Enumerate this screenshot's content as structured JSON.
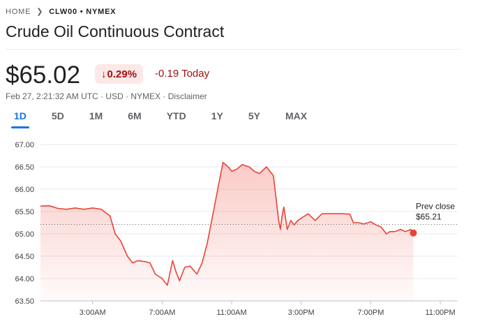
{
  "breadcrumb": {
    "home": "HOME",
    "item": "CLW00 • NYMEX"
  },
  "title": "Crude Oil Continuous Contract",
  "quote": {
    "price": "$65.02",
    "change_pct": "0.29%",
    "change_today": "-0.19 Today",
    "meta": "Feb 27, 2:21:32 AM UTC · USD · NYMEX · Disclaimer"
  },
  "tabs": [
    {
      "label": "1D",
      "active": true
    },
    {
      "label": "5D"
    },
    {
      "label": "1M"
    },
    {
      "label": "6M"
    },
    {
      "label": "YTD"
    },
    {
      "label": "1Y"
    },
    {
      "label": "5Y"
    },
    {
      "label": "MAX"
    }
  ],
  "colors": {
    "line": "#ea4335",
    "negative": "#a50e0e",
    "accent": "#1a73e8"
  },
  "icons": {
    "breadcrumb_separator": "chevron-right-icon",
    "change_arrow": "arrow-down-icon"
  },
  "chart_data": {
    "type": "area",
    "y_ticks": [
      "67.00",
      "66.50",
      "66.00",
      "65.50",
      "65.00",
      "64.50",
      "64.00",
      "63.50"
    ],
    "ylim": [
      63.5,
      67.0
    ],
    "x_ticks": [
      "3:00AM",
      "7:00AM",
      "11:00AM",
      "3:00PM",
      "7:00PM",
      "11:00PM"
    ],
    "x_tick_hours": [
      3,
      7,
      11,
      15,
      19,
      23
    ],
    "xlim_hours": [
      0,
      24
    ],
    "prev_close": {
      "label_line1": "Prev close",
      "label_line2": "$65.21",
      "value": 65.21
    },
    "series": [
      {
        "x": [
          0,
          0.5,
          1,
          1.5,
          2,
          2.5,
          3,
          3.5,
          4,
          4.3,
          4.6,
          5,
          5.3,
          5.6,
          6,
          6.3,
          6.6,
          7,
          7.3,
          7.6,
          7.8,
          8,
          8.3,
          8.6,
          9,
          9.3,
          9.6,
          10,
          10.2,
          10.5,
          10.8,
          11,
          11.3,
          11.6,
          12,
          12.3,
          12.6,
          13,
          13.4,
          13.7,
          13.8,
          13.9,
          14.0,
          14.2,
          14.4,
          14.6,
          14.8,
          15,
          15.4,
          15.8,
          16.2,
          16.6,
          17,
          17.4,
          17.8,
          18,
          18.3,
          18.6,
          19,
          19.3,
          19.6,
          19.9,
          20.1,
          20.4,
          20.7,
          21,
          21.3,
          21.45
        ],
        "y": [
          65.62,
          65.63,
          65.57,
          65.55,
          65.58,
          65.55,
          65.58,
          65.55,
          65.4,
          65.0,
          64.85,
          64.5,
          64.35,
          64.4,
          64.38,
          64.35,
          64.1,
          64.0,
          63.85,
          64.4,
          64.15,
          63.95,
          64.25,
          64.28,
          64.1,
          64.35,
          64.8,
          65.6,
          66.0,
          66.6,
          66.5,
          66.4,
          66.45,
          66.55,
          66.5,
          66.4,
          66.35,
          66.5,
          66.3,
          65.3,
          65.1,
          65.4,
          65.6,
          65.1,
          65.3,
          65.2,
          65.3,
          65.35,
          65.45,
          65.3,
          65.45,
          65.45,
          65.45,
          65.45,
          65.44,
          65.25,
          65.25,
          65.22,
          65.27,
          65.2,
          65.15,
          65.0,
          65.05,
          65.05,
          65.1,
          65.05,
          65.1,
          65.02
        ]
      }
    ]
  }
}
